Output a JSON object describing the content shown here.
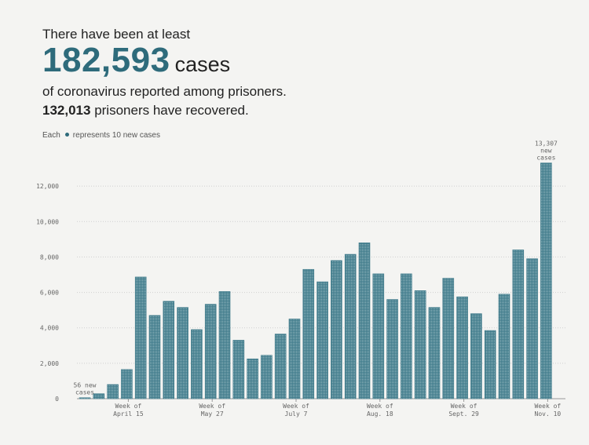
{
  "header": {
    "line1": "There have been at least",
    "big_number": "182,593",
    "big_unit": "cases",
    "line3": "of coronavirus reported among prisoners.",
    "recovered_number": "132,013",
    "recovered_text": "prisoners have recovered."
  },
  "legend": {
    "prefix": "Each",
    "suffix": "represents 10 new cases"
  },
  "colors": {
    "bar": "#3f7a8a",
    "accent": "#2e6b7b"
  },
  "chart_data": {
    "type": "bar",
    "ylim": [
      0,
      14000
    ],
    "yticks": [
      0,
      2000,
      4000,
      6000,
      8000,
      10000,
      12000
    ],
    "ytick_labels": [
      "0",
      "2,000",
      "4,000",
      "6,000",
      "8,000",
      "10,000",
      "12,000"
    ],
    "xticks": [
      {
        "index": 3,
        "label1": "Week of",
        "label2": "April 15"
      },
      {
        "index": 9,
        "label1": "Week of",
        "label2": "May 27"
      },
      {
        "index": 15,
        "label1": "Week of",
        "label2": "July 7"
      },
      {
        "index": 21,
        "label1": "Week of",
        "label2": "Aug. 18"
      },
      {
        "index": 27,
        "label1": "Week of",
        "label2": "Sept. 29"
      },
      {
        "index": 33,
        "label1": "Week of",
        "label2": "Nov. 10"
      }
    ],
    "values": [
      56,
      280,
      800,
      1650,
      6870,
      4700,
      5500,
      5150,
      3900,
      5330,
      6050,
      3300,
      2250,
      2450,
      3650,
      4500,
      7300,
      6600,
      7800,
      8150,
      8800,
      7050,
      5600,
      7050,
      6100,
      5150,
      6800,
      5750,
      4800,
      3850,
      5900,
      8400,
      7900,
      13307
    ],
    "annotations": [
      {
        "index": 0,
        "lines": [
          "56 new",
          "cases"
        ]
      },
      {
        "index": 33,
        "lines": [
          "13,307",
          "new",
          "cases"
        ]
      }
    ]
  }
}
